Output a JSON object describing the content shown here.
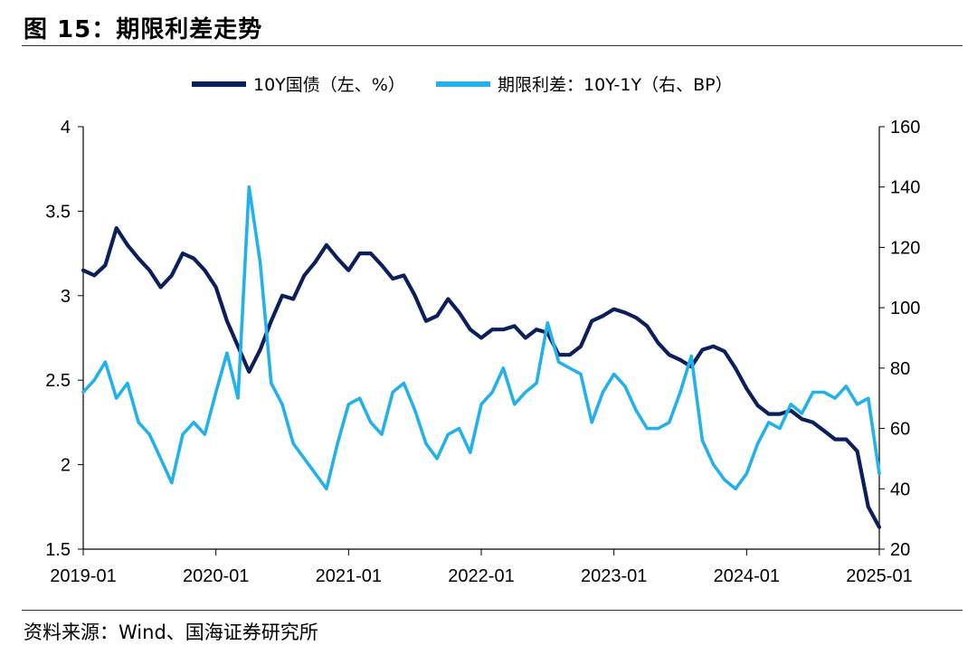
{
  "figure_title": "图 15：期限利差走势",
  "source_note": "资料来源：Wind、国海证券研究所",
  "chart_data": {
    "type": "line",
    "title": "",
    "legend_placement": "top-center",
    "x_tick_labels": [
      "2019-01",
      "2020-01",
      "2021-01",
      "2022-01",
      "2023-01",
      "2024-01",
      "2025-01"
    ],
    "x_range": [
      "2019-01",
      "2025-01"
    ],
    "y_left": {
      "label": "",
      "range": [
        1.5,
        4
      ],
      "ticks": [
        1.5,
        2,
        2.5,
        3,
        3.5,
        4
      ],
      "tick_labels": [
        "1.5",
        "2",
        "2.5",
        "3",
        "3.5",
        "4"
      ]
    },
    "y_right": {
      "label": "",
      "range": [
        20,
        160
      ],
      "ticks": [
        20,
        40,
        60,
        80,
        100,
        120,
        140,
        160
      ],
      "tick_labels": [
        "20",
        "40",
        "60",
        "80",
        "100",
        "120",
        "140",
        "160"
      ]
    },
    "grid": false,
    "series": [
      {
        "name": "10Y国债（左、%）",
        "axis": "left",
        "color": "#0b1f5c",
        "points": [
          [
            "2019-01",
            3.15
          ],
          [
            "2019-02",
            3.12
          ],
          [
            "2019-03",
            3.18
          ],
          [
            "2019-04",
            3.4
          ],
          [
            "2019-05",
            3.3
          ],
          [
            "2019-06",
            3.22
          ],
          [
            "2019-07",
            3.15
          ],
          [
            "2019-08",
            3.05
          ],
          [
            "2019-09",
            3.12
          ],
          [
            "2019-10",
            3.25
          ],
          [
            "2019-11",
            3.22
          ],
          [
            "2019-12",
            3.15
          ],
          [
            "2020-01",
            3.05
          ],
          [
            "2020-02",
            2.85
          ],
          [
            "2020-03",
            2.7
          ],
          [
            "2020-04",
            2.55
          ],
          [
            "2020-05",
            2.68
          ],
          [
            "2020-06",
            2.85
          ],
          [
            "2020-07",
            3.0
          ],
          [
            "2020-08",
            2.98
          ],
          [
            "2020-09",
            3.12
          ],
          [
            "2020-10",
            3.2
          ],
          [
            "2020-11",
            3.3
          ],
          [
            "2020-12",
            3.22
          ],
          [
            "2021-01",
            3.15
          ],
          [
            "2021-02",
            3.25
          ],
          [
            "2021-03",
            3.25
          ],
          [
            "2021-04",
            3.18
          ],
          [
            "2021-05",
            3.1
          ],
          [
            "2021-06",
            3.12
          ],
          [
            "2021-07",
            3.0
          ],
          [
            "2021-08",
            2.85
          ],
          [
            "2021-09",
            2.88
          ],
          [
            "2021-10",
            2.98
          ],
          [
            "2021-11",
            2.9
          ],
          [
            "2021-12",
            2.8
          ],
          [
            "2022-01",
            2.75
          ],
          [
            "2022-02",
            2.8
          ],
          [
            "2022-03",
            2.8
          ],
          [
            "2022-04",
            2.82
          ],
          [
            "2022-05",
            2.75
          ],
          [
            "2022-06",
            2.8
          ],
          [
            "2022-07",
            2.78
          ],
          [
            "2022-08",
            2.65
          ],
          [
            "2022-09",
            2.65
          ],
          [
            "2022-10",
            2.7
          ],
          [
            "2022-11",
            2.85
          ],
          [
            "2022-12",
            2.88
          ],
          [
            "2023-01",
            2.92
          ],
          [
            "2023-02",
            2.9
          ],
          [
            "2023-03",
            2.87
          ],
          [
            "2023-04",
            2.82
          ],
          [
            "2023-05",
            2.72
          ],
          [
            "2023-06",
            2.65
          ],
          [
            "2023-07",
            2.62
          ],
          [
            "2023-08",
            2.58
          ],
          [
            "2023-09",
            2.68
          ],
          [
            "2023-10",
            2.7
          ],
          [
            "2023-11",
            2.67
          ],
          [
            "2023-12",
            2.57
          ],
          [
            "2024-01",
            2.45
          ],
          [
            "2024-02",
            2.35
          ],
          [
            "2024-03",
            2.3
          ],
          [
            "2024-04",
            2.3
          ],
          [
            "2024-05",
            2.32
          ],
          [
            "2024-06",
            2.27
          ],
          [
            "2024-07",
            2.25
          ],
          [
            "2024-08",
            2.2
          ],
          [
            "2024-09",
            2.15
          ],
          [
            "2024-10",
            2.15
          ],
          [
            "2024-11",
            2.08
          ],
          [
            "2024-12",
            1.75
          ],
          [
            "2025-01",
            1.63
          ]
        ]
      },
      {
        "name": "期限利差：10Y-1Y（右、BP）",
        "axis": "right",
        "color": "#22b1ea",
        "points": [
          [
            "2019-01",
            72
          ],
          [
            "2019-02",
            76
          ],
          [
            "2019-03",
            82
          ],
          [
            "2019-04",
            70
          ],
          [
            "2019-05",
            75
          ],
          [
            "2019-06",
            62
          ],
          [
            "2019-07",
            58
          ],
          [
            "2019-08",
            50
          ],
          [
            "2019-09",
            42
          ],
          [
            "2019-10",
            58
          ],
          [
            "2019-11",
            62
          ],
          [
            "2019-12",
            58
          ],
          [
            "2020-01",
            72
          ],
          [
            "2020-02",
            85
          ],
          [
            "2020-03",
            70
          ],
          [
            "2020-04",
            140
          ],
          [
            "2020-05",
            115
          ],
          [
            "2020-06",
            75
          ],
          [
            "2020-07",
            68
          ],
          [
            "2020-08",
            55
          ],
          [
            "2020-09",
            50
          ],
          [
            "2020-10",
            45
          ],
          [
            "2020-11",
            40
          ],
          [
            "2020-12",
            55
          ],
          [
            "2021-01",
            68
          ],
          [
            "2021-02",
            70
          ],
          [
            "2021-03",
            62
          ],
          [
            "2021-04",
            58
          ],
          [
            "2021-05",
            72
          ],
          [
            "2021-06",
            75
          ],
          [
            "2021-07",
            66
          ],
          [
            "2021-08",
            55
          ],
          [
            "2021-09",
            50
          ],
          [
            "2021-10",
            58
          ],
          [
            "2021-11",
            60
          ],
          [
            "2021-12",
            52
          ],
          [
            "2022-01",
            68
          ],
          [
            "2022-02",
            72
          ],
          [
            "2022-03",
            80
          ],
          [
            "2022-04",
            68
          ],
          [
            "2022-05",
            72
          ],
          [
            "2022-06",
            75
          ],
          [
            "2022-07",
            95
          ],
          [
            "2022-08",
            82
          ],
          [
            "2022-09",
            80
          ],
          [
            "2022-10",
            78
          ],
          [
            "2022-11",
            62
          ],
          [
            "2022-12",
            72
          ],
          [
            "2023-01",
            78
          ],
          [
            "2023-02",
            74
          ],
          [
            "2023-03",
            66
          ],
          [
            "2023-04",
            60
          ],
          [
            "2023-05",
            60
          ],
          [
            "2023-06",
            62
          ],
          [
            "2023-07",
            72
          ],
          [
            "2023-08",
            84
          ],
          [
            "2023-09",
            56
          ],
          [
            "2023-10",
            48
          ],
          [
            "2023-11",
            43
          ],
          [
            "2023-12",
            40
          ],
          [
            "2024-01",
            45
          ],
          [
            "2024-02",
            55
          ],
          [
            "2024-03",
            62
          ],
          [
            "2024-04",
            60
          ],
          [
            "2024-05",
            68
          ],
          [
            "2024-06",
            65
          ],
          [
            "2024-07",
            72
          ],
          [
            "2024-08",
            72
          ],
          [
            "2024-09",
            70
          ],
          [
            "2024-10",
            74
          ],
          [
            "2024-11",
            68
          ],
          [
            "2024-12",
            70
          ],
          [
            "2025-01",
            45
          ]
        ]
      }
    ]
  }
}
